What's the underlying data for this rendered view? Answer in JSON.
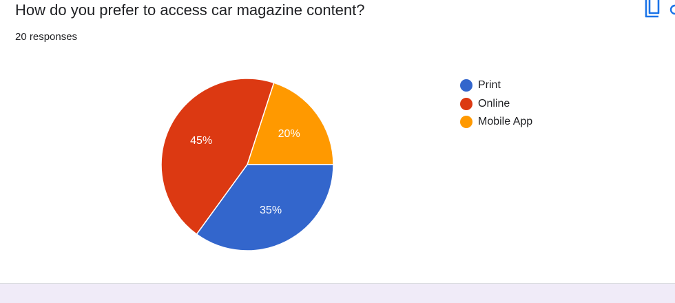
{
  "question": {
    "title": "How do you prefer to access car magazine content?",
    "responses_label": "20 responses"
  },
  "icons": {
    "copy": "copy-chart-icon",
    "more": "more-options-icon"
  },
  "colors": {
    "accent": "#1a73e8",
    "footer_band": "#f0ebf8"
  },
  "chart_data": {
    "type": "pie",
    "title": "",
    "total_responses": 20,
    "slices": [
      {
        "label": "Print",
        "value": 35,
        "display": "35%",
        "color": "#3366cc"
      },
      {
        "label": "Online",
        "value": 45,
        "display": "45%",
        "color": "#dc3912"
      },
      {
        "label": "Mobile App",
        "value": 20,
        "display": "20%",
        "color": "#ff9900"
      }
    ],
    "legend_position": "right"
  }
}
